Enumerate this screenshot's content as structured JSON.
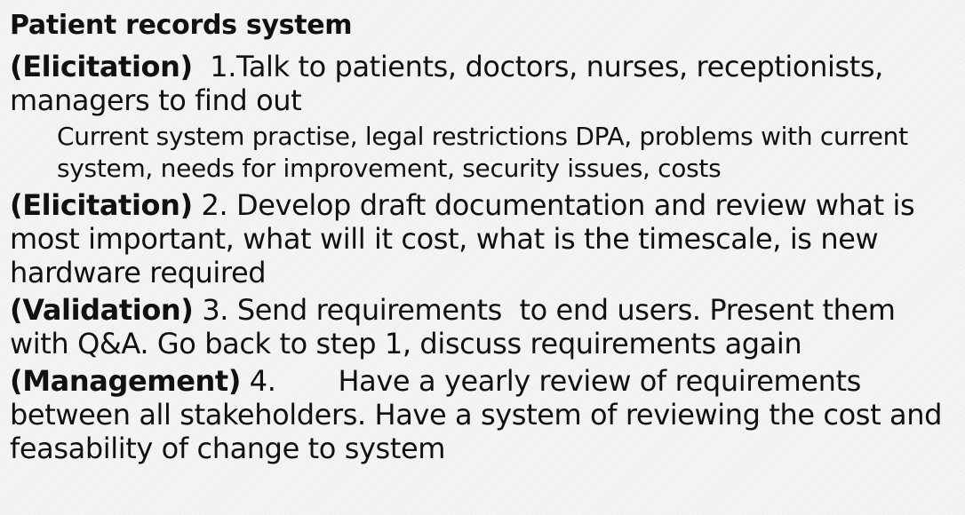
{
  "title": "Patient records system",
  "items": [
    {
      "tag": "(Elicitation)",
      "num": "1.",
      "text": "Talk to patients, doctors, nurses, receptionists, managers to find out",
      "sub": "Current system practise, legal restrictions DPA, problems with current system, needs for improvement, security issues, costs"
    },
    {
      "tag": "(Elicitation)",
      "num": "2.",
      "text": "Develop draft documentation and review what is most important, what will it cost, what is the timescale, is new hardware required"
    },
    {
      "tag": "(Validation)",
      "num": "3.",
      "text": "Send requirements  to end users. Present them with Q&A. Go back to step 1, discuss requirements again"
    },
    {
      "tag": "(Management)",
      "num": "4.",
      "text": "Have a yearly review of requirements between all stakeholders. Have a system of reviewing the cost and feasability of change to system"
    }
  ]
}
